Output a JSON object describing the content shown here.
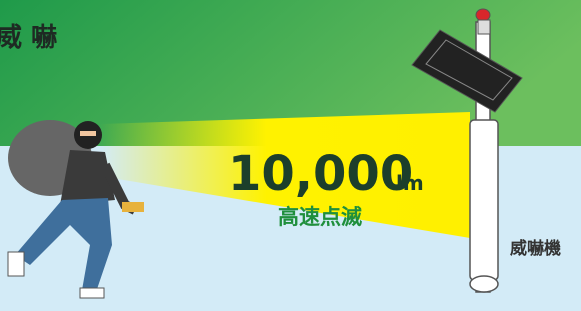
{
  "header": {
    "title": "威 嚇"
  },
  "spec": {
    "value": "10,000",
    "unit": "lm",
    "mode": "高速点滅"
  },
  "device_label": "威嚇機"
}
